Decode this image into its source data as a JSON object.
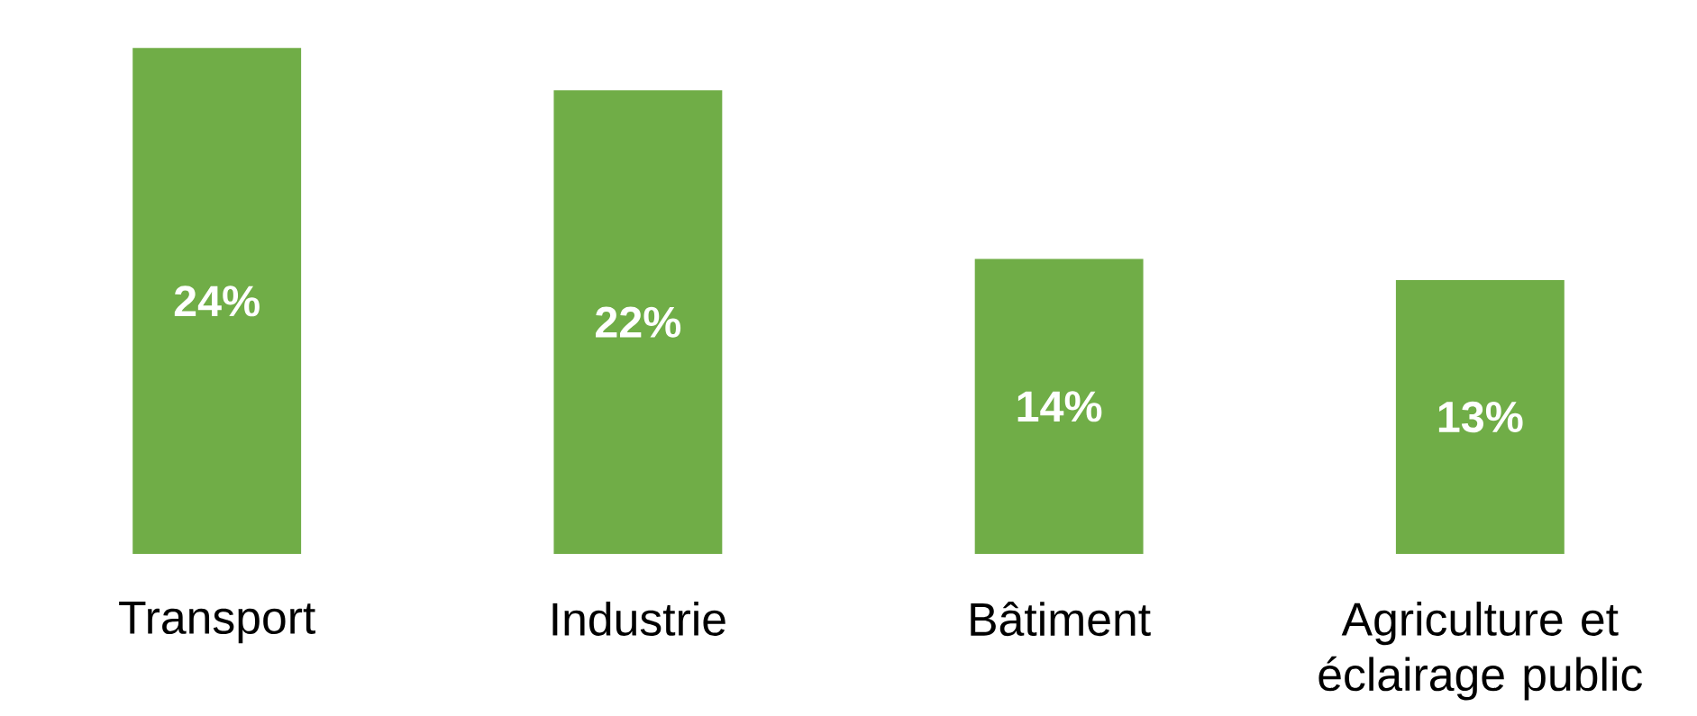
{
  "chart_data": {
    "type": "bar",
    "categories": [
      "Transport",
      "Industrie",
      "Bâtiment",
      "Agriculture et éclairage public"
    ],
    "values": [
      24,
      22,
      14,
      13
    ],
    "value_labels": [
      "24%",
      "22%",
      "14%",
      "13%"
    ],
    "color": "#70ad47"
  }
}
